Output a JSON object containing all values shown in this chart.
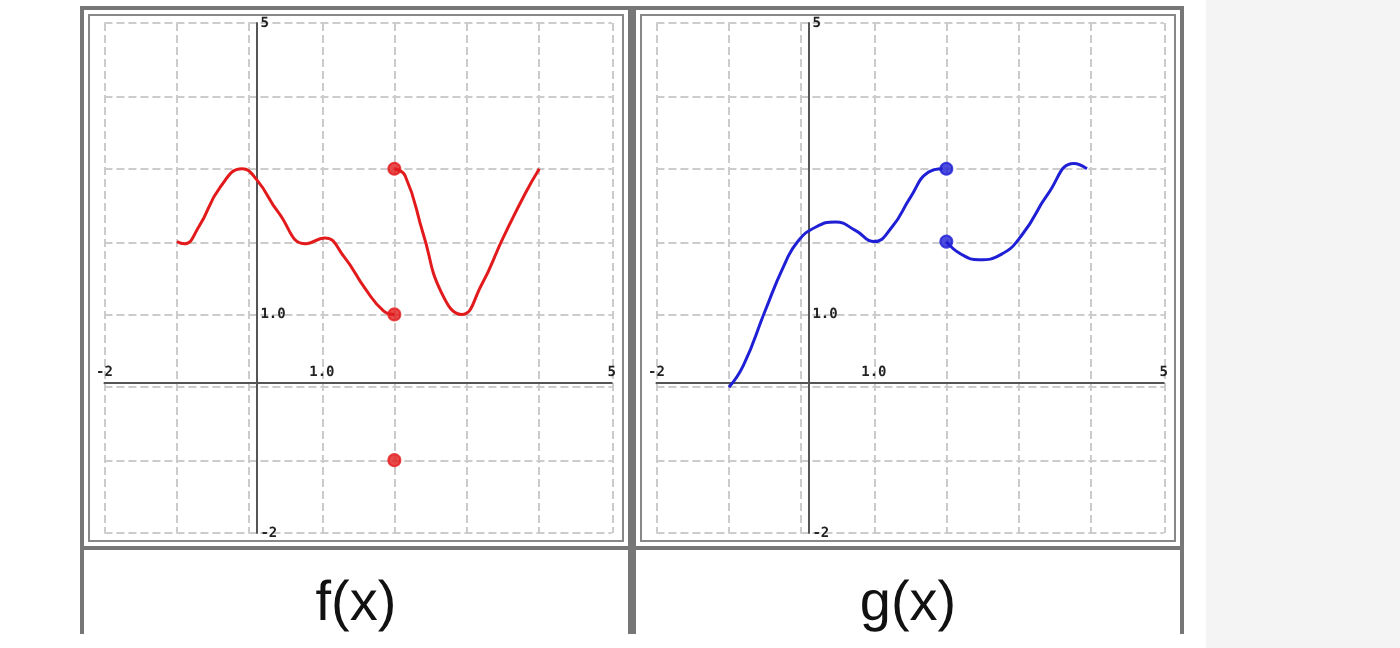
{
  "chart_data": [
    {
      "type": "line",
      "title": "f(x)",
      "xlim": [
        -2,
        5
      ],
      "ylim": [
        -2,
        5
      ],
      "xticks": [
        {
          "value": -2,
          "label": "-2"
        },
        {
          "value": -1,
          "label": null
        },
        {
          "value": 0,
          "label": null
        },
        {
          "value": 1,
          "label": "1.0"
        },
        {
          "value": 2,
          "label": null
        },
        {
          "value": 3,
          "label": null
        },
        {
          "value": 4,
          "label": null
        },
        {
          "value": 5,
          "label": "5"
        }
      ],
      "yticks": [
        {
          "value": -2,
          "label": "-2"
        },
        {
          "value": -1,
          "label": null
        },
        {
          "value": 0,
          "label": null
        },
        {
          "value": 1,
          "label": "1.0"
        },
        {
          "value": 2,
          "label": null
        },
        {
          "value": 3,
          "label": null
        },
        {
          "value": 4,
          "label": null
        },
        {
          "value": 5,
          "label": "5"
        }
      ],
      "grid": true,
      "series": [
        {
          "type": "line",
          "color": "#e31a1c",
          "x": [
            -1,
            -0.9,
            -0.7,
            -0.4,
            -0.1,
            0.1,
            0.4,
            0.78,
            1.04,
            1.3,
            1.6,
            1.85,
            2
          ],
          "values": [
            2,
            1.97,
            2.2,
            2.75,
            3,
            2.85,
            2.4,
            1.97,
            2.05,
            1.8,
            1.35,
            1.05,
            1
          ]
        },
        {
          "type": "line",
          "color": "#e31a1c",
          "x": [
            2,
            2.15,
            2.4,
            2.65,
            2.93,
            3.2,
            3.5,
            3.8,
            4
          ],
          "values": [
            3,
            2.9,
            2.1,
            1.3,
            1,
            1.4,
            2.05,
            2.65,
            3
          ]
        },
        {
          "type": "scatter",
          "color": "#e31a1c",
          "marker": "circle",
          "x": [
            2,
            2
          ],
          "values": [
            1,
            3
          ]
        },
        {
          "type": "scatter",
          "color": "#e31a1c",
          "marker": "circle",
          "x": [
            2
          ],
          "values": [
            -1
          ]
        }
      ]
    },
    {
      "type": "line",
      "title": "g(x)",
      "xlim": [
        -2,
        5
      ],
      "ylim": [
        -2,
        5
      ],
      "xticks": [
        {
          "value": -2,
          "label": "-2"
        },
        {
          "value": -1,
          "label": null
        },
        {
          "value": 0,
          "label": null
        },
        {
          "value": 1,
          "label": "1.0"
        },
        {
          "value": 2,
          "label": null
        },
        {
          "value": 3,
          "label": null
        },
        {
          "value": 4,
          "label": null
        },
        {
          "value": 5,
          "label": "5"
        }
      ],
      "yticks": [
        {
          "value": -2,
          "label": "-2"
        },
        {
          "value": -1,
          "label": null
        },
        {
          "value": 0,
          "label": null
        },
        {
          "value": 1,
          "label": "1.0"
        },
        {
          "value": 2,
          "label": null
        },
        {
          "value": 3,
          "label": null
        },
        {
          "value": 4,
          "label": null
        },
        {
          "value": 5,
          "label": "5"
        }
      ],
      "grid": true,
      "series": [
        {
          "type": "line",
          "color": "#1f1fd6",
          "x": [
            -1,
            -0.8,
            -0.5,
            -0.25,
            -0.05,
            0.2,
            0.47,
            0.75,
            1,
            1.25,
            1.5,
            1.75,
            1.95
          ],
          "values": [
            0,
            0.3,
            1.05,
            1.65,
            2,
            2.2,
            2.27,
            2.15,
            2,
            2.2,
            2.6,
            2.95,
            3
          ]
        },
        {
          "type": "line",
          "color": "#1f1fd6",
          "x": [
            2,
            2.2,
            2.45,
            2.75,
            3.05,
            3.4,
            3.76,
            3.94
          ],
          "values": [
            2,
            1.83,
            1.75,
            1.82,
            2.1,
            2.65,
            3.07,
            3
          ]
        },
        {
          "type": "scatter",
          "color": "#1f1fd6",
          "marker": "circle",
          "x": [
            2
          ],
          "values": [
            2
          ]
        },
        {
          "type": "scatter",
          "color": "#1f1fd6",
          "marker": "circle",
          "x": [
            2
          ],
          "values": [
            3
          ]
        }
      ]
    }
  ]
}
